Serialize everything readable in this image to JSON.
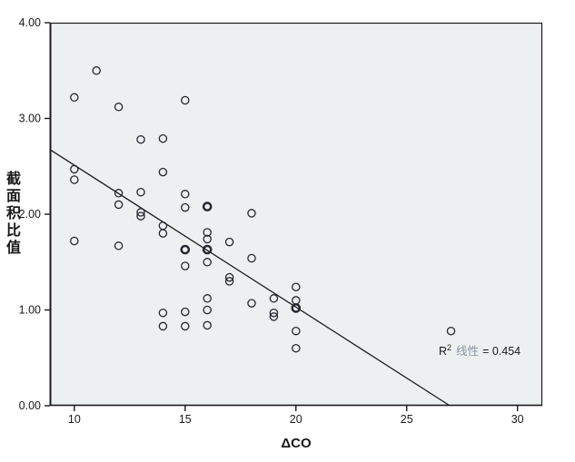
{
  "chart_data": {
    "type": "scatter",
    "title": "",
    "xlabel": "ΔCO",
    "ylabel": "截面积比值",
    "xlim": [
      8.9,
      31.12
    ],
    "ylim": [
      0,
      4
    ],
    "grid": false,
    "legend": "none",
    "xticks": [
      {
        "v": 10,
        "label": "10"
      },
      {
        "v": 15,
        "label": "15"
      },
      {
        "v": 20,
        "label": "20"
      },
      {
        "v": 25,
        "label": "25"
      },
      {
        "v": 30,
        "label": "30"
      }
    ],
    "yticks": [
      {
        "v": 0,
        "label": "0.00"
      },
      {
        "v": 1,
        "label": "1.00"
      },
      {
        "v": 2,
        "label": "2.00"
      },
      {
        "v": 3,
        "label": "3.00"
      },
      {
        "v": 4,
        "label": "4.00"
      }
    ],
    "points": [
      {
        "x": 11,
        "y": 3.5,
        "bold": false
      },
      {
        "x": 10,
        "y": 3.22,
        "bold": false
      },
      {
        "x": 12,
        "y": 3.12,
        "bold": false
      },
      {
        "x": 15,
        "y": 3.19,
        "bold": false
      },
      {
        "x": 13,
        "y": 2.78,
        "bold": false
      },
      {
        "x": 14,
        "y": 2.79,
        "bold": false
      },
      {
        "x": 14,
        "y": 2.44,
        "bold": false
      },
      {
        "x": 10,
        "y": 2.47,
        "bold": false
      },
      {
        "x": 10,
        "y": 2.36,
        "bold": false
      },
      {
        "x": 12,
        "y": 2.22,
        "bold": false
      },
      {
        "x": 12,
        "y": 2.1,
        "bold": false
      },
      {
        "x": 13,
        "y": 2.23,
        "bold": false
      },
      {
        "x": 13,
        "y": 2.02,
        "bold": false
      },
      {
        "x": 13,
        "y": 1.98,
        "bold": false
      },
      {
        "x": 15,
        "y": 2.21,
        "bold": false
      },
      {
        "x": 15,
        "y": 2.07,
        "bold": false
      },
      {
        "x": 16,
        "y": 2.08,
        "bold": true
      },
      {
        "x": 18,
        "y": 2.01,
        "bold": false
      },
      {
        "x": 14,
        "y": 1.88,
        "bold": false
      },
      {
        "x": 14,
        "y": 1.8,
        "bold": false
      },
      {
        "x": 12,
        "y": 1.67,
        "bold": false
      },
      {
        "x": 10,
        "y": 1.72,
        "bold": false
      },
      {
        "x": 15,
        "y": 1.63,
        "bold": true
      },
      {
        "x": 16,
        "y": 1.81,
        "bold": false
      },
      {
        "x": 16,
        "y": 1.74,
        "bold": false
      },
      {
        "x": 16,
        "y": 1.63,
        "bold": true
      },
      {
        "x": 17,
        "y": 1.71,
        "bold": false
      },
      {
        "x": 15,
        "y": 1.46,
        "bold": false
      },
      {
        "x": 16,
        "y": 1.5,
        "bold": false
      },
      {
        "x": 18,
        "y": 1.54,
        "bold": false
      },
      {
        "x": 17,
        "y": 1.34,
        "bold": false
      },
      {
        "x": 17,
        "y": 1.3,
        "bold": false
      },
      {
        "x": 16,
        "y": 1.12,
        "bold": false
      },
      {
        "x": 18,
        "y": 1.07,
        "bold": false
      },
      {
        "x": 14,
        "y": 0.97,
        "bold": false
      },
      {
        "x": 15,
        "y": 0.98,
        "bold": false
      },
      {
        "x": 16,
        "y": 1.0,
        "bold": false
      },
      {
        "x": 14,
        "y": 0.83,
        "bold": false
      },
      {
        "x": 15,
        "y": 0.83,
        "bold": false
      },
      {
        "x": 16,
        "y": 0.84,
        "bold": false
      },
      {
        "x": 20,
        "y": 1.24,
        "bold": false
      },
      {
        "x": 19,
        "y": 1.12,
        "bold": false
      },
      {
        "x": 20,
        "y": 1.1,
        "bold": false
      },
      {
        "x": 20,
        "y": 1.02,
        "bold": true
      },
      {
        "x": 19,
        "y": 0.97,
        "bold": false
      },
      {
        "x": 19,
        "y": 0.93,
        "bold": false
      },
      {
        "x": 20,
        "y": 0.78,
        "bold": false
      },
      {
        "x": 20,
        "y": 0.6,
        "bold": false
      },
      {
        "x": 27,
        "y": 0.78,
        "bold": false
      }
    ],
    "fit_line": {
      "x1": 8.9,
      "y1": 2.675,
      "x2": 26.95,
      "y2": 0.0,
      "slope": -0.148,
      "intercept": 3.99
    },
    "annotation": {
      "r_label": "R",
      "sup": "2",
      "series_label": "线性",
      "value_text": "= 0.454"
    },
    "colors": {
      "plot_bg": "#edf0f1",
      "frame": "#1a1a1a",
      "marker": "#23272e",
      "fit_line": "#1a1a1a",
      "annotation_series": "#8795a1",
      "text": "#1a1a1a"
    }
  }
}
